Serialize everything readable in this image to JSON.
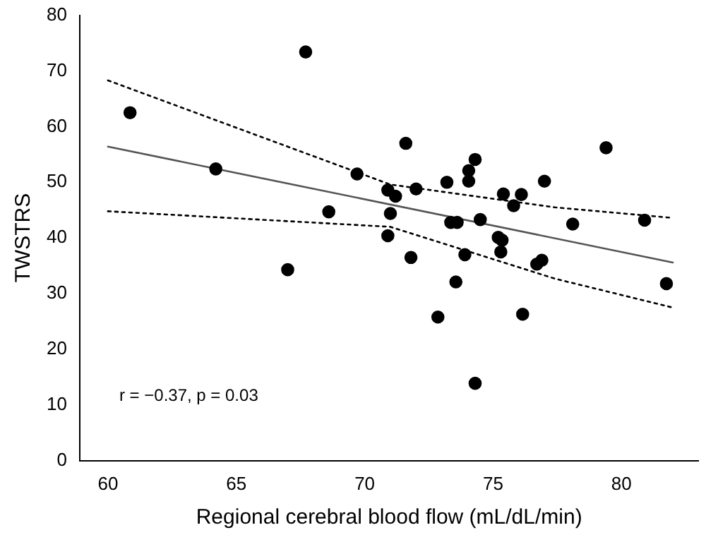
{
  "chart_data": {
    "type": "scatter",
    "xlabel": "Regional cerebral blood flow (mL/dL/min)",
    "ylabel": "TWSTRS",
    "xlim": [
      58.9,
      83
    ],
    "ylim": [
      0,
      80
    ],
    "xticks": [
      60,
      65,
      70,
      75,
      80
    ],
    "yticks": [
      0,
      10,
      20,
      30,
      40,
      50,
      60,
      70,
      80
    ],
    "grid": false,
    "legend": false,
    "annotations": [
      "r = −0.37, p = 0.03"
    ],
    "series": [
      {
        "color": "#000000",
        "marker": "circle",
        "x": [
          60.86,
          67.7,
          64.2,
          69.7,
          70.9,
          71.2,
          68.6,
          71.0,
          70.9,
          67.0,
          71.6,
          79.4,
          74.3,
          74.05,
          74.05,
          73.2,
          77.0,
          72.0,
          75.4,
          76.1,
          75.8,
          73.35,
          73.6,
          74.5,
          78.1,
          80.9,
          75.2,
          75.35,
          71.8,
          73.9,
          75.3,
          76.7,
          76.9,
          73.55,
          81.75,
          72.85,
          76.15,
          74.3
        ],
        "values": [
          62.5,
          73.4,
          52.4,
          51.5,
          48.6,
          47.5,
          44.7,
          44.4,
          40.4,
          34.3,
          57.0,
          56.2,
          54.1,
          52.1,
          50.2,
          50.0,
          50.2,
          48.8,
          47.9,
          47.8,
          45.8,
          42.8,
          42.8,
          43.3,
          42.5,
          43.2,
          40.1,
          39.6,
          36.5,
          37.0,
          37.5,
          35.3,
          36.0,
          32.1,
          31.8,
          25.8,
          26.3,
          13.9
        ]
      },
      {
        "type": "line",
        "color": "#555555",
        "marker": "none",
        "line_style": "solid",
        "x": [
          60,
          82
        ],
        "values": [
          56.4,
          35.6
        ]
      },
      {
        "type": "line",
        "color": "#000000",
        "marker": "none",
        "line_style": "dotted",
        "x": [
          60,
          71,
          77.4,
          82
        ],
        "values": [
          68.3,
          49.6,
          45.5,
          43.6
        ]
      },
      {
        "type": "line",
        "color": "#000000",
        "marker": "none",
        "line_style": "dotted",
        "x": [
          60,
          71,
          77.4,
          82
        ],
        "values": [
          44.8,
          42.0,
          32.7,
          27.5
        ]
      }
    ]
  }
}
